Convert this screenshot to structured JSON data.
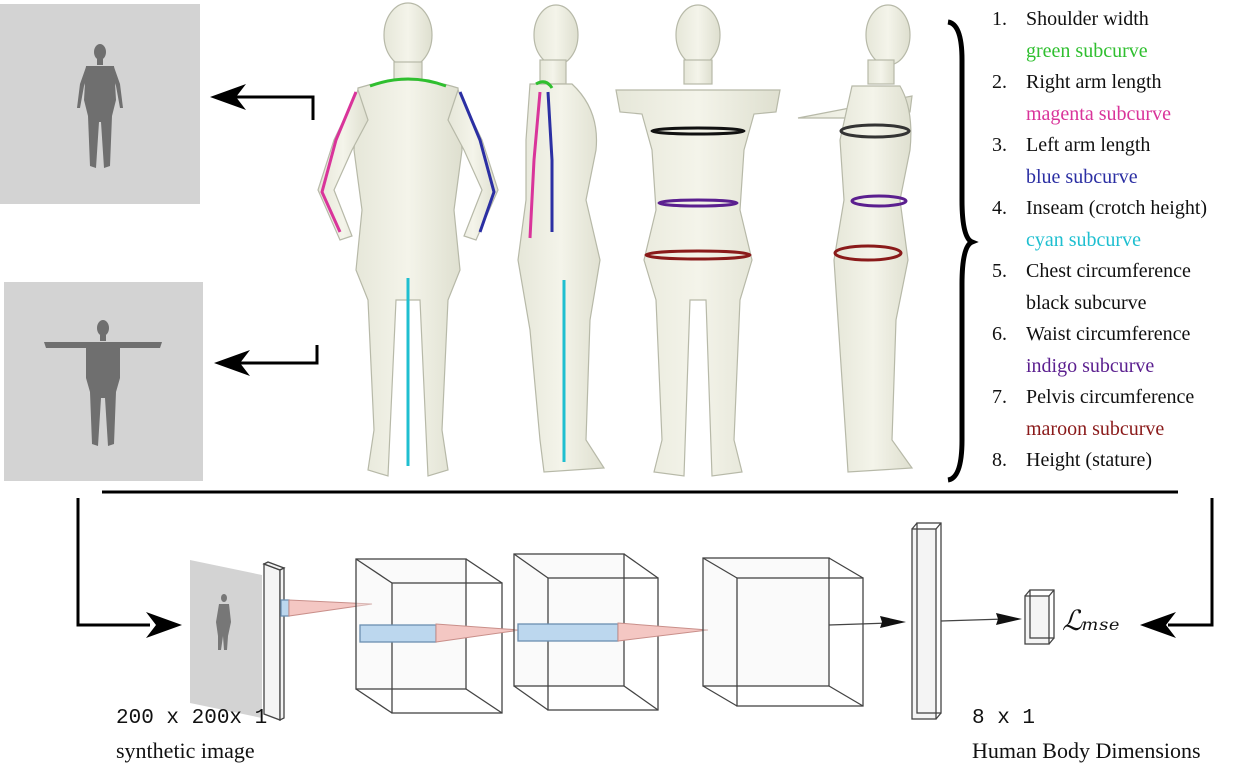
{
  "measurements": [
    {
      "num": "1.",
      "name": "Shoulder width",
      "curve": "green subcurve",
      "color": "#2fbf2f"
    },
    {
      "num": "2.",
      "name": "Right arm length",
      "curve": "magenta subcurve",
      "color": "#d9349a"
    },
    {
      "num": "3.",
      "name": "Left arm length",
      "curve": "blue subcurve",
      "color": "#2b2fa3"
    },
    {
      "num": "4.",
      "name": "Inseam (crotch height)",
      "curve": "cyan subcurve",
      "color": "#1fbfd0"
    },
    {
      "num": "5.",
      "name": "Chest circumference",
      "curve": "black subcurve",
      "color": "#111111"
    },
    {
      "num": "6.",
      "name": "Waist circumference",
      "curve": "indigo subcurve",
      "color": "#5b1f8f"
    },
    {
      "num": "7.",
      "name": "Pelvis circumference",
      "curve": "maroon subcurve",
      "color": "#8a1a1a"
    },
    {
      "num": "8.",
      "name": "Height (stature)",
      "curve": "",
      "color": "#111111"
    }
  ],
  "input_caption": {
    "size": "200 x 200x 1",
    "desc": "synthetic image"
  },
  "output_caption": {
    "size": "8 x 1",
    "desc": "Human Body Dimensions"
  },
  "loss_symbol": "ℒₘₛₑ"
}
